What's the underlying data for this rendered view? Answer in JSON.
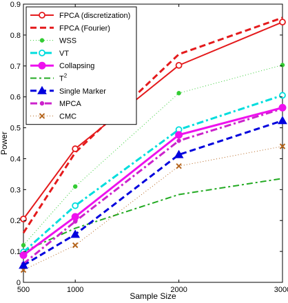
{
  "chart_data": {
    "type": "line",
    "xlabel": "Sample Size",
    "ylabel": "Power",
    "x": [
      500,
      1000,
      2000,
      3000
    ],
    "xlim": [
      500,
      3000
    ],
    "ylim": [
      0,
      0.9
    ],
    "xticks": [
      "500",
      "1000",
      "2000",
      "3000"
    ],
    "yticks": [
      "0",
      "0.1",
      "0.2",
      "0.3",
      "0.4",
      "0.5",
      "0.6",
      "0.7",
      "0.8",
      "0.9"
    ],
    "grid": false,
    "legend_position": "top-left",
    "series": [
      {
        "name": "FPCA (discretization)",
        "values": [
          0.205,
          0.432,
          0.702,
          0.842
        ],
        "color": "#e41a1c",
        "dash": "",
        "marker": "circle-open",
        "width": 2
      },
      {
        "name": "FPCA (Fourier)",
        "values": [
          0.16,
          0.42,
          0.738,
          0.856
        ],
        "color": "#e41a1c",
        "dash": "9,5",
        "marker": "none",
        "width": 3
      },
      {
        "name": "WSS",
        "values": [
          0.12,
          0.31,
          0.612,
          0.703
        ],
        "color": "#33cc33",
        "dash": "1,3",
        "marker": "dot",
        "width": 1
      },
      {
        "name": "VT",
        "values": [
          0.098,
          0.248,
          0.494,
          0.605
        ],
        "color": "#00dddd",
        "dash": "10,4,3,4",
        "marker": "circle-open",
        "width": 3
      },
      {
        "name": "Collapsing",
        "values": [
          0.088,
          0.212,
          0.477,
          0.565
        ],
        "color": "#ee11ee",
        "dash": "",
        "marker": "circle-filled",
        "width": 3
      },
      {
        "name": "T^2",
        "values": [
          0.1,
          0.175,
          0.284,
          0.336
        ],
        "color": "#22aa22",
        "dash": "9,4,3,4",
        "marker": "none",
        "width": 2
      },
      {
        "name": "Single Marker",
        "values": [
          0.055,
          0.155,
          0.413,
          0.523
        ],
        "color": "#0000dd",
        "dash": "9,5",
        "marker": "triangle",
        "width": 3
      },
      {
        "name": "MPCA",
        "values": [
          0.06,
          0.197,
          0.458,
          0.562
        ],
        "color": "#cc22cc",
        "dash": "10,4,3,4",
        "marker": "dot",
        "width": 3
      },
      {
        "name": "CMC",
        "values": [
          0.04,
          0.12,
          0.376,
          0.44
        ],
        "color": "#b5651d",
        "dash": "1,3",
        "marker": "x",
        "width": 1
      }
    ]
  }
}
